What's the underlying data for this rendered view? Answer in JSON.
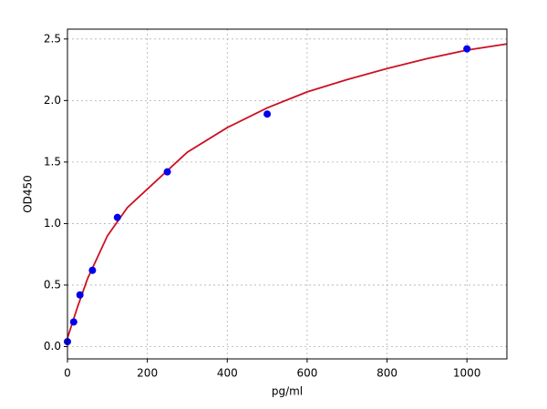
{
  "chart_data": {
    "type": "scatter",
    "xlabel": "pg/ml",
    "ylabel": "OD450",
    "xlim": [
      0,
      1100
    ],
    "ylim": [
      -0.1,
      2.58
    ],
    "xticks": [
      0,
      200,
      400,
      600,
      800,
      1000
    ],
    "yticks": [
      {
        "value": 0,
        "label": "0.0"
      },
      0.5,
      {
        "value": 1,
        "label": "1.0"
      },
      1.5,
      {
        "value": 2,
        "label": "2.0"
      },
      2.5
    ],
    "grid": true,
    "series": [
      {
        "type": "scatter",
        "color": "#0000ee",
        "x": [
          0,
          15.6,
          31.25,
          62.5,
          125,
          250,
          500,
          1000
        ],
        "values": [
          0.04,
          0.2,
          0.42,
          0.62,
          1.05,
          1.42,
          1.89,
          2.42
        ]
      },
      {
        "type": "line",
        "color": "#cc1122",
        "x": [
          0,
          10,
          25,
          50,
          100,
          150,
          200,
          300,
          400,
          500,
          600,
          700,
          800,
          900,
          1000,
          1100
        ],
        "values": [
          0.07,
          0.17,
          0.32,
          0.55,
          0.9,
          1.13,
          1.28,
          1.58,
          1.78,
          1.94,
          2.07,
          2.17,
          2.26,
          2.34,
          2.41,
          2.46
        ]
      }
    ]
  }
}
